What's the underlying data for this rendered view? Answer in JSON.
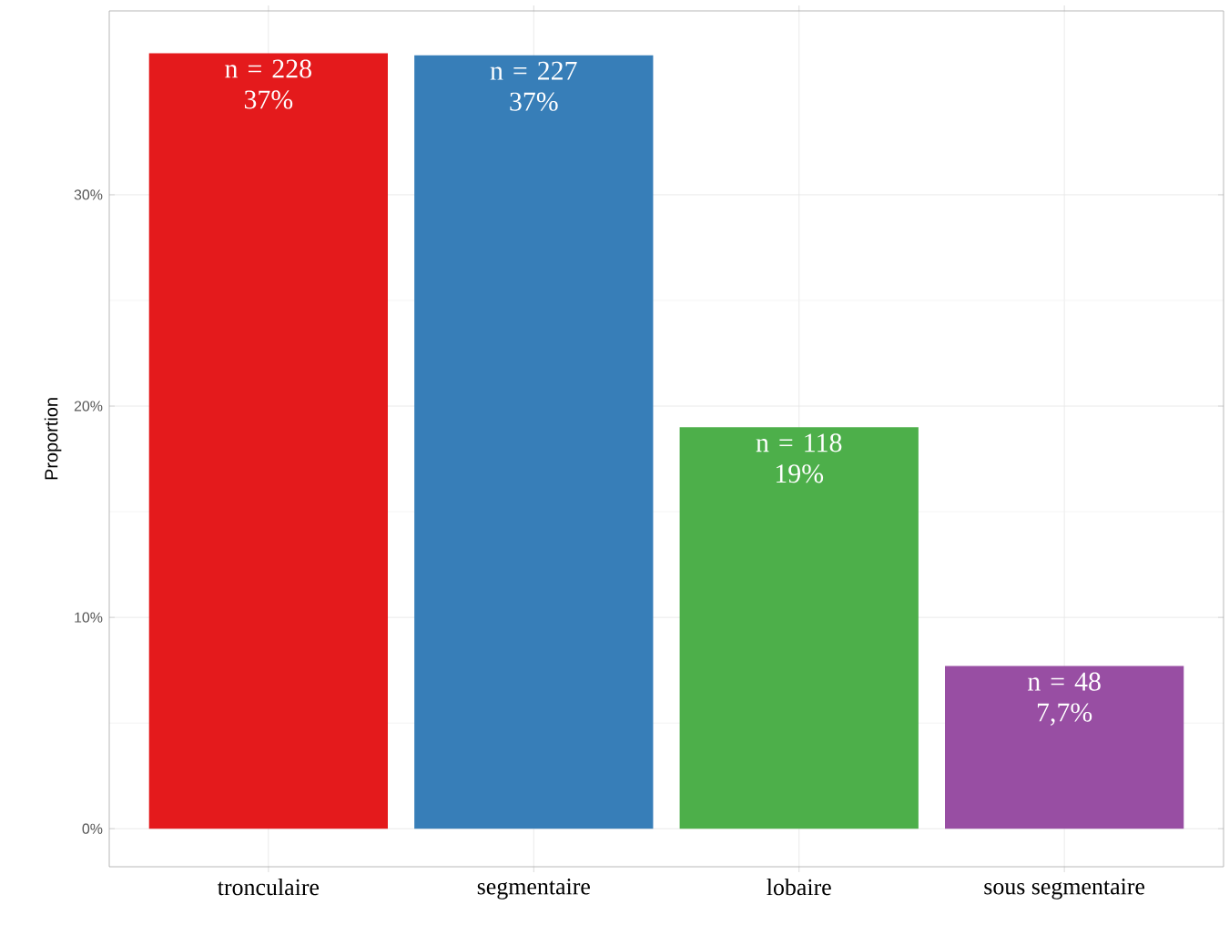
{
  "chart_data": {
    "type": "bar",
    "ylabel": "Proportion",
    "categories": [
      "tronculaire",
      "segmentaire",
      "lobaire",
      "sous segmentaire"
    ],
    "values": [
      36.7,
      36.6,
      19.0,
      7.7
    ],
    "colors": [
      "#e41a1c",
      "#377eb8",
      "#4daf4a",
      "#984ea3"
    ],
    "value_labels": [
      "n = 228 37%",
      "n = 227 37%",
      "n = 118 19%",
      "n = 48 7,7%"
    ],
    "ylim": [
      -1.8,
      38.7
    ],
    "yticks": [
      {
        "value": 0,
        "label": "0%"
      },
      {
        "value": 10,
        "label": "10%"
      },
      {
        "value": 20,
        "label": "20%"
      },
      {
        "value": 30,
        "label": "30%"
      }
    ],
    "grid": true
  }
}
